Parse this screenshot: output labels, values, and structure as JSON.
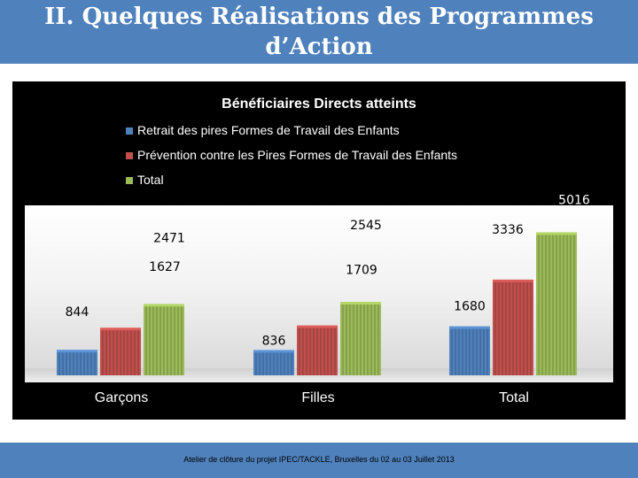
{
  "slide": {
    "title": "II. Quelques Réalisations des Programmes d’Action",
    "footer": "Atelier de clôture du projet IPEC/TACKLE, Bruxelles du 02 au 03 Juillet 2013"
  },
  "colors": {
    "slide_bar": "#4f81bd",
    "series": [
      "#4f81bd",
      "#c0504d",
      "#9bbb59"
    ]
  },
  "chart_data": {
    "type": "bar",
    "title": "Bénéficiaires Directs atteints",
    "categories": [
      "Garçons",
      "Filles",
      "Total"
    ],
    "series": [
      {
        "name": "Retrait des pires Formes de Travail des Enfants",
        "values": [
          844,
          836,
          1680
        ]
      },
      {
        "name": "Prévention contre les Pires Formes de Travail des Enfants",
        "values": [
          1627,
          1709,
          3336
        ]
      },
      {
        "name": "Total",
        "values": [
          2471,
          2545,
          5016
        ]
      }
    ],
    "ylim": [
      0,
      5500
    ],
    "legend": "top",
    "grid": false,
    "xlabel": "",
    "ylabel": ""
  }
}
